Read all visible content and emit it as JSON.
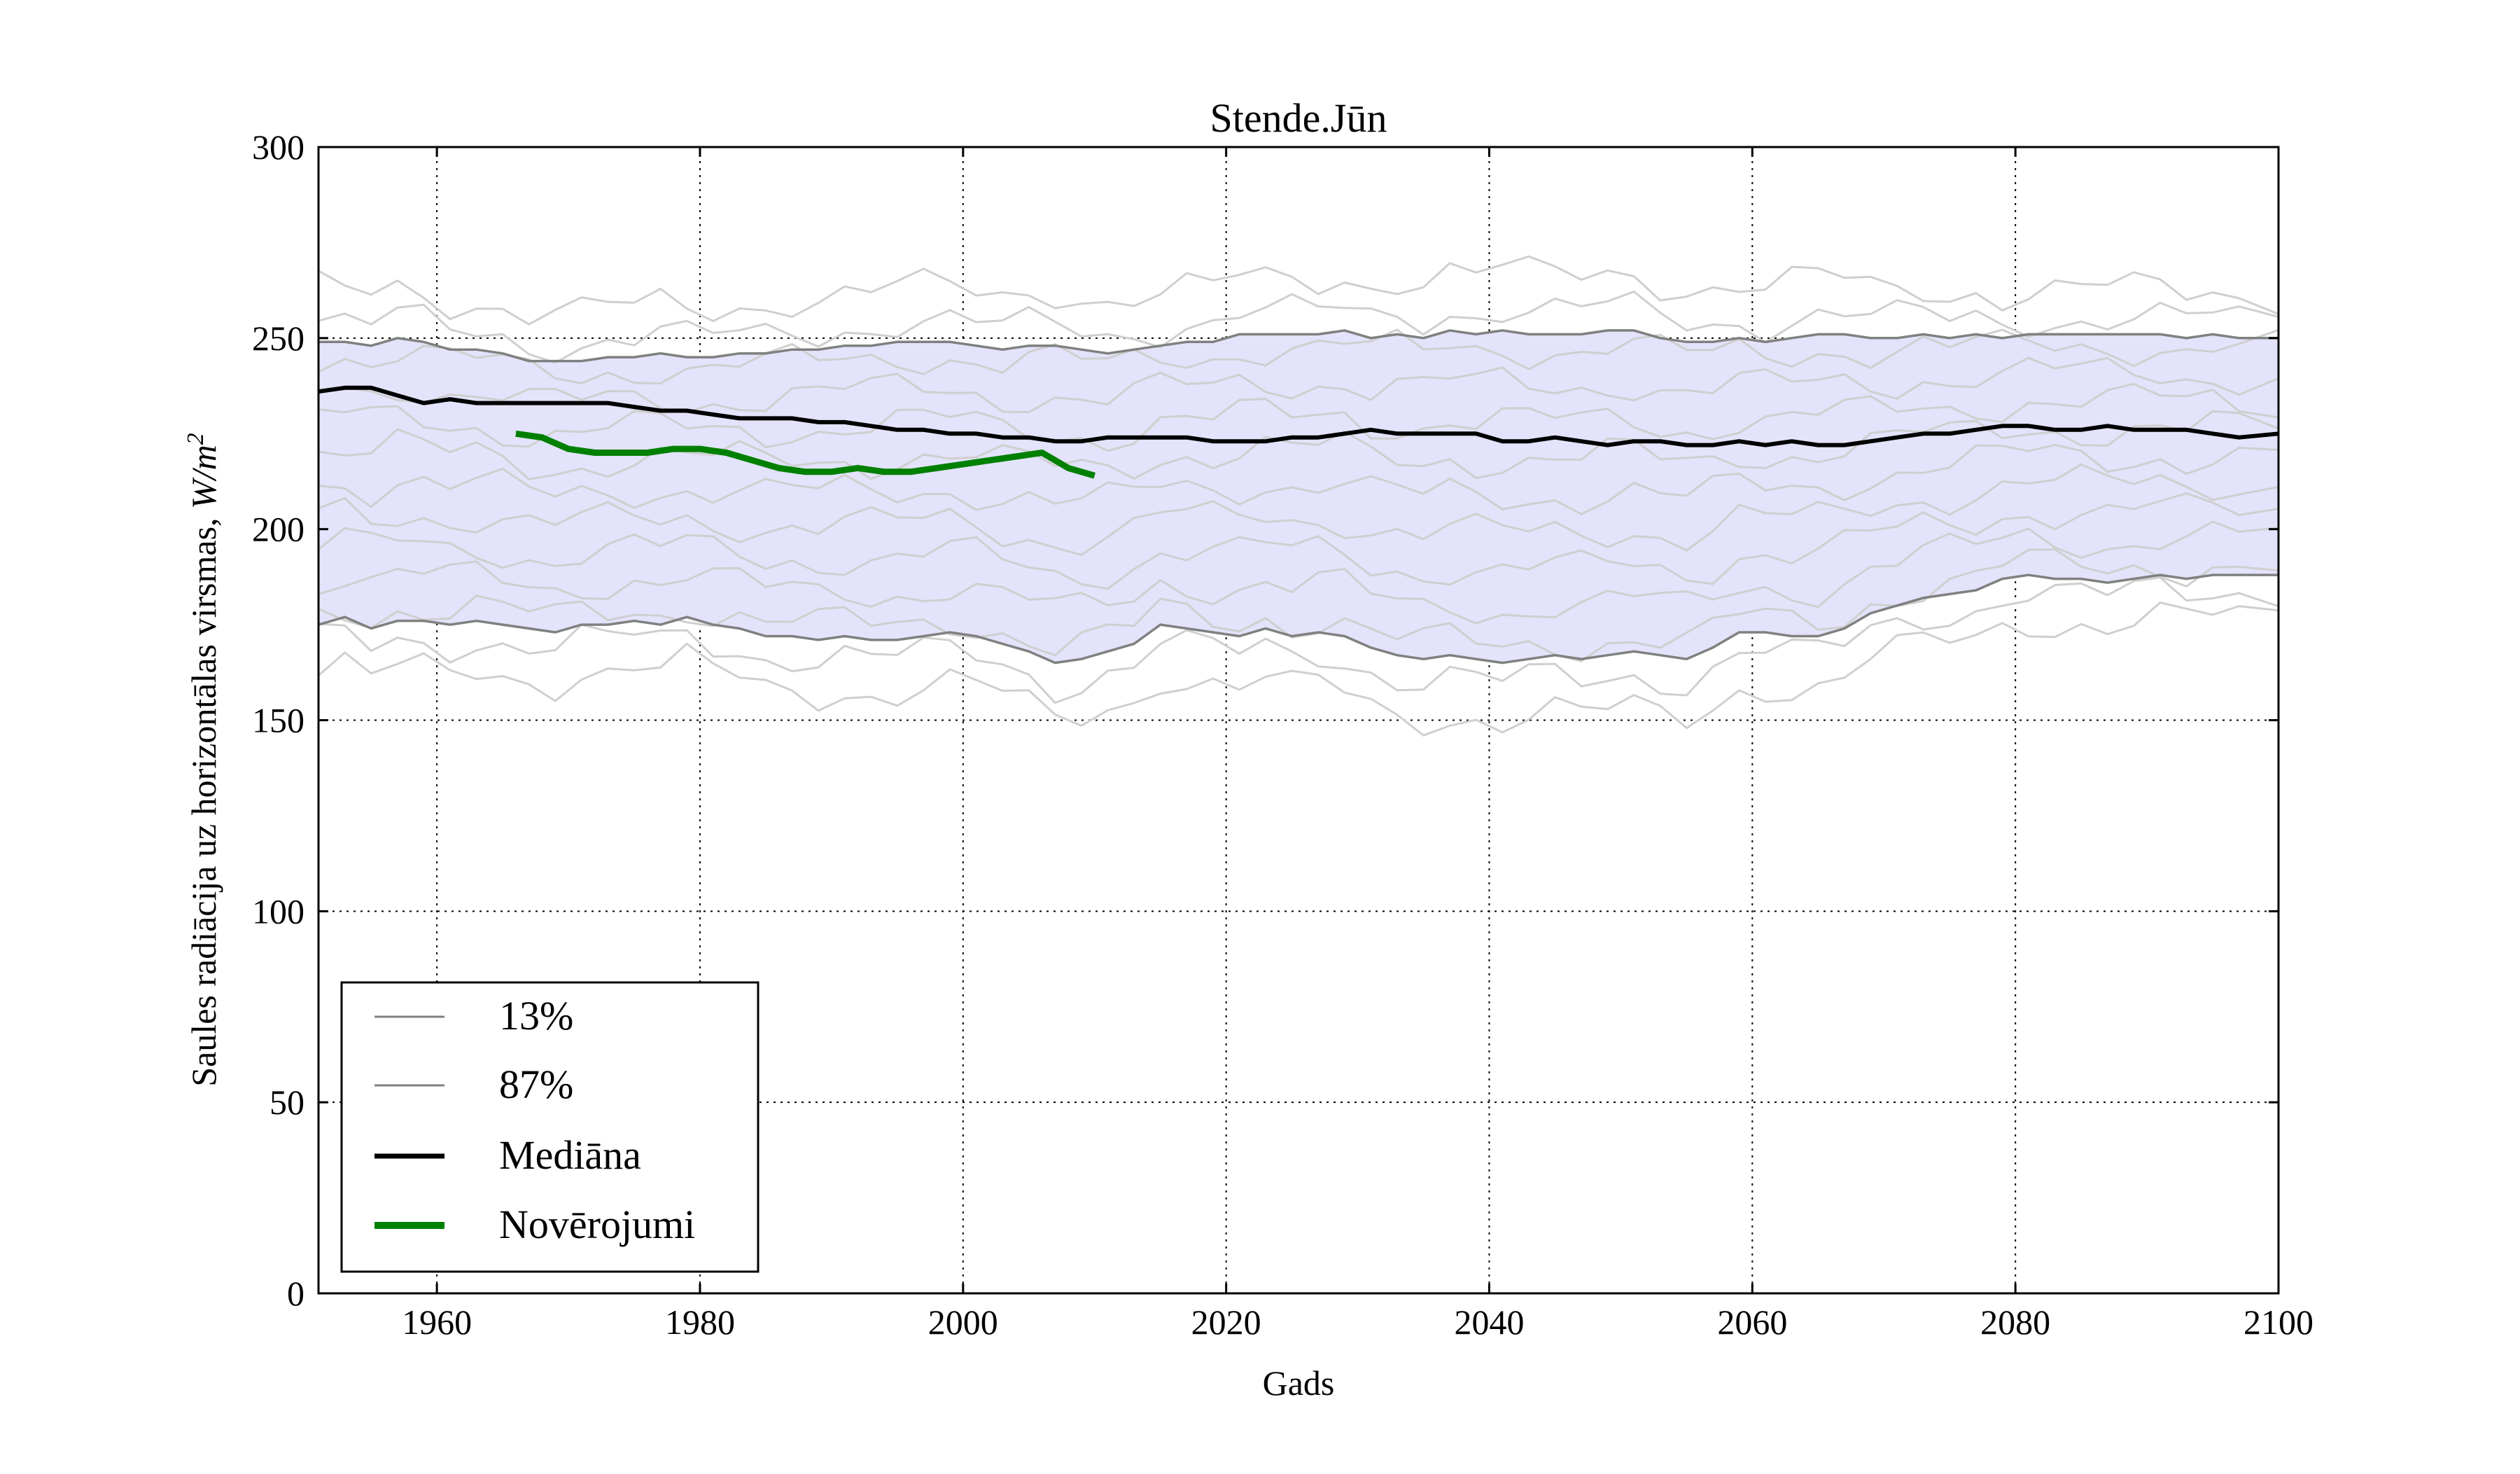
{
  "chart_data": {
    "type": "line",
    "title": "Stende.Jūn",
    "xlabel": "Gads",
    "ylabel": "Saules radiācija uz horizontālas virsmas, W/m²",
    "ylabel_main": "Saules radiācija uz horizontālas virsmas, ",
    "ylabel_unit_base": "W/m",
    "ylabel_unit_exp": "2",
    "xlim": [
      1951,
      2100
    ],
    "ylim": [
      0,
      300
    ],
    "xticks": [
      1960,
      1980,
      2000,
      2020,
      2040,
      2060,
      2080,
      2100
    ],
    "yticks": [
      0,
      50,
      100,
      150,
      200,
      250,
      300
    ],
    "grid": true,
    "legend_position": "lower-left",
    "legend": [
      "13%",
      "87%",
      "Mediāna",
      "Novērojumi"
    ],
    "colors": {
      "band_fill": "#e3e3fb",
      "percentile": "#808080",
      "median": "#000000",
      "observed": "#008000",
      "ensemble": "#cfcfcf"
    },
    "band": {
      "x": [
        1951,
        1953,
        1955,
        1957,
        1959,
        1961,
        1963,
        1965,
        1967,
        1969,
        1971,
        1973,
        1975,
        1977,
        1979,
        1981,
        1983,
        1985,
        1987,
        1989,
        1991,
        1993,
        1995,
        1997,
        1999,
        2001,
        2003,
        2005,
        2007,
        2009,
        2011,
        2013,
        2015,
        2017,
        2019,
        2021,
        2023,
        2025,
        2027,
        2029,
        2031,
        2033,
        2035,
        2037,
        2039,
        2041,
        2043,
        2045,
        2047,
        2049,
        2051,
        2053,
        2055,
        2057,
        2059,
        2061,
        2063,
        2065,
        2067,
        2069,
        2071,
        2073,
        2075,
        2077,
        2079,
        2081,
        2083,
        2085,
        2087,
        2089,
        2091,
        2093,
        2095,
        2097,
        2100
      ],
      "p13": [
        175,
        177,
        174,
        176,
        176,
        175,
        176,
        175,
        174,
        173,
        175,
        175,
        176,
        175,
        177,
        175,
        174,
        172,
        172,
        171,
        172,
        171,
        171,
        172,
        173,
        172,
        170,
        168,
        165,
        166,
        168,
        170,
        175,
        174,
        173,
        172,
        174,
        172,
        173,
        172,
        169,
        167,
        166,
        167,
        166,
        165,
        166,
        167,
        166,
        167,
        168,
        167,
        166,
        169,
        173,
        173,
        172,
        172,
        174,
        178,
        180,
        182,
        183,
        184,
        187,
        188,
        187,
        187,
        186,
        187,
        188,
        187,
        188,
        188,
        188
      ],
      "p87": [
        249,
        249,
        248,
        250,
        249,
        247,
        247,
        246,
        244,
        244,
        244,
        245,
        245,
        246,
        245,
        245,
        246,
        246,
        247,
        247,
        248,
        248,
        249,
        249,
        249,
        248,
        247,
        248,
        248,
        247,
        246,
        247,
        248,
        249,
        249,
        251,
        251,
        251,
        251,
        252,
        250,
        251,
        250,
        252,
        251,
        252,
        251,
        251,
        251,
        252,
        252,
        250,
        249,
        249,
        250,
        249,
        250,
        251,
        251,
        250,
        250,
        251,
        250,
        251,
        250,
        251,
        251,
        251,
        251,
        251,
        251,
        250,
        251,
        250,
        250
      ]
    },
    "series": [
      {
        "name": "Mediāna",
        "x": [
          1951,
          1953,
          1955,
          1957,
          1959,
          1961,
          1963,
          1965,
          1967,
          1969,
          1971,
          1973,
          1975,
          1977,
          1979,
          1981,
          1983,
          1985,
          1987,
          1989,
          1991,
          1993,
          1995,
          1997,
          1999,
          2001,
          2003,
          2005,
          2007,
          2009,
          2011,
          2013,
          2015,
          2017,
          2019,
          2021,
          2023,
          2025,
          2027,
          2029,
          2031,
          2033,
          2035,
          2037,
          2039,
          2041,
          2043,
          2045,
          2047,
          2049,
          2051,
          2053,
          2055,
          2057,
          2059,
          2061,
          2063,
          2065,
          2067,
          2069,
          2071,
          2073,
          2075,
          2077,
          2079,
          2081,
          2083,
          2085,
          2087,
          2089,
          2091,
          2093,
          2095,
          2097,
          2100
        ],
        "values": [
          236,
          237,
          237,
          235,
          233,
          234,
          233,
          233,
          233,
          233,
          233,
          233,
          232,
          231,
          231,
          230,
          229,
          229,
          229,
          228,
          228,
          227,
          226,
          226,
          225,
          225,
          224,
          224,
          223,
          223,
          224,
          224,
          224,
          224,
          223,
          223,
          223,
          224,
          224,
          225,
          226,
          225,
          225,
          225,
          225,
          223,
          223,
          224,
          223,
          222,
          223,
          223,
          222,
          222,
          223,
          222,
          223,
          222,
          222,
          223,
          224,
          225,
          225,
          226,
          227,
          227,
          226,
          226,
          227,
          226,
          226,
          226,
          225,
          224,
          225
        ]
      },
      {
        "name": "Novērojumi",
        "x": [
          1966,
          1968,
          1970,
          1972,
          1974,
          1976,
          1978,
          1980,
          1982,
          1984,
          1986,
          1988,
          1990,
          1992,
          1994,
          1996,
          1998,
          2000,
          2002,
          2004,
          2006,
          2008,
          2010
        ],
        "values": [
          225,
          224,
          221,
          220,
          220,
          220,
          221,
          221,
          220,
          218,
          216,
          215,
          215,
          216,
          215,
          215,
          216,
          217,
          218,
          219,
          220,
          216,
          214
        ]
      }
    ],
    "ensemble_count": 13
  }
}
